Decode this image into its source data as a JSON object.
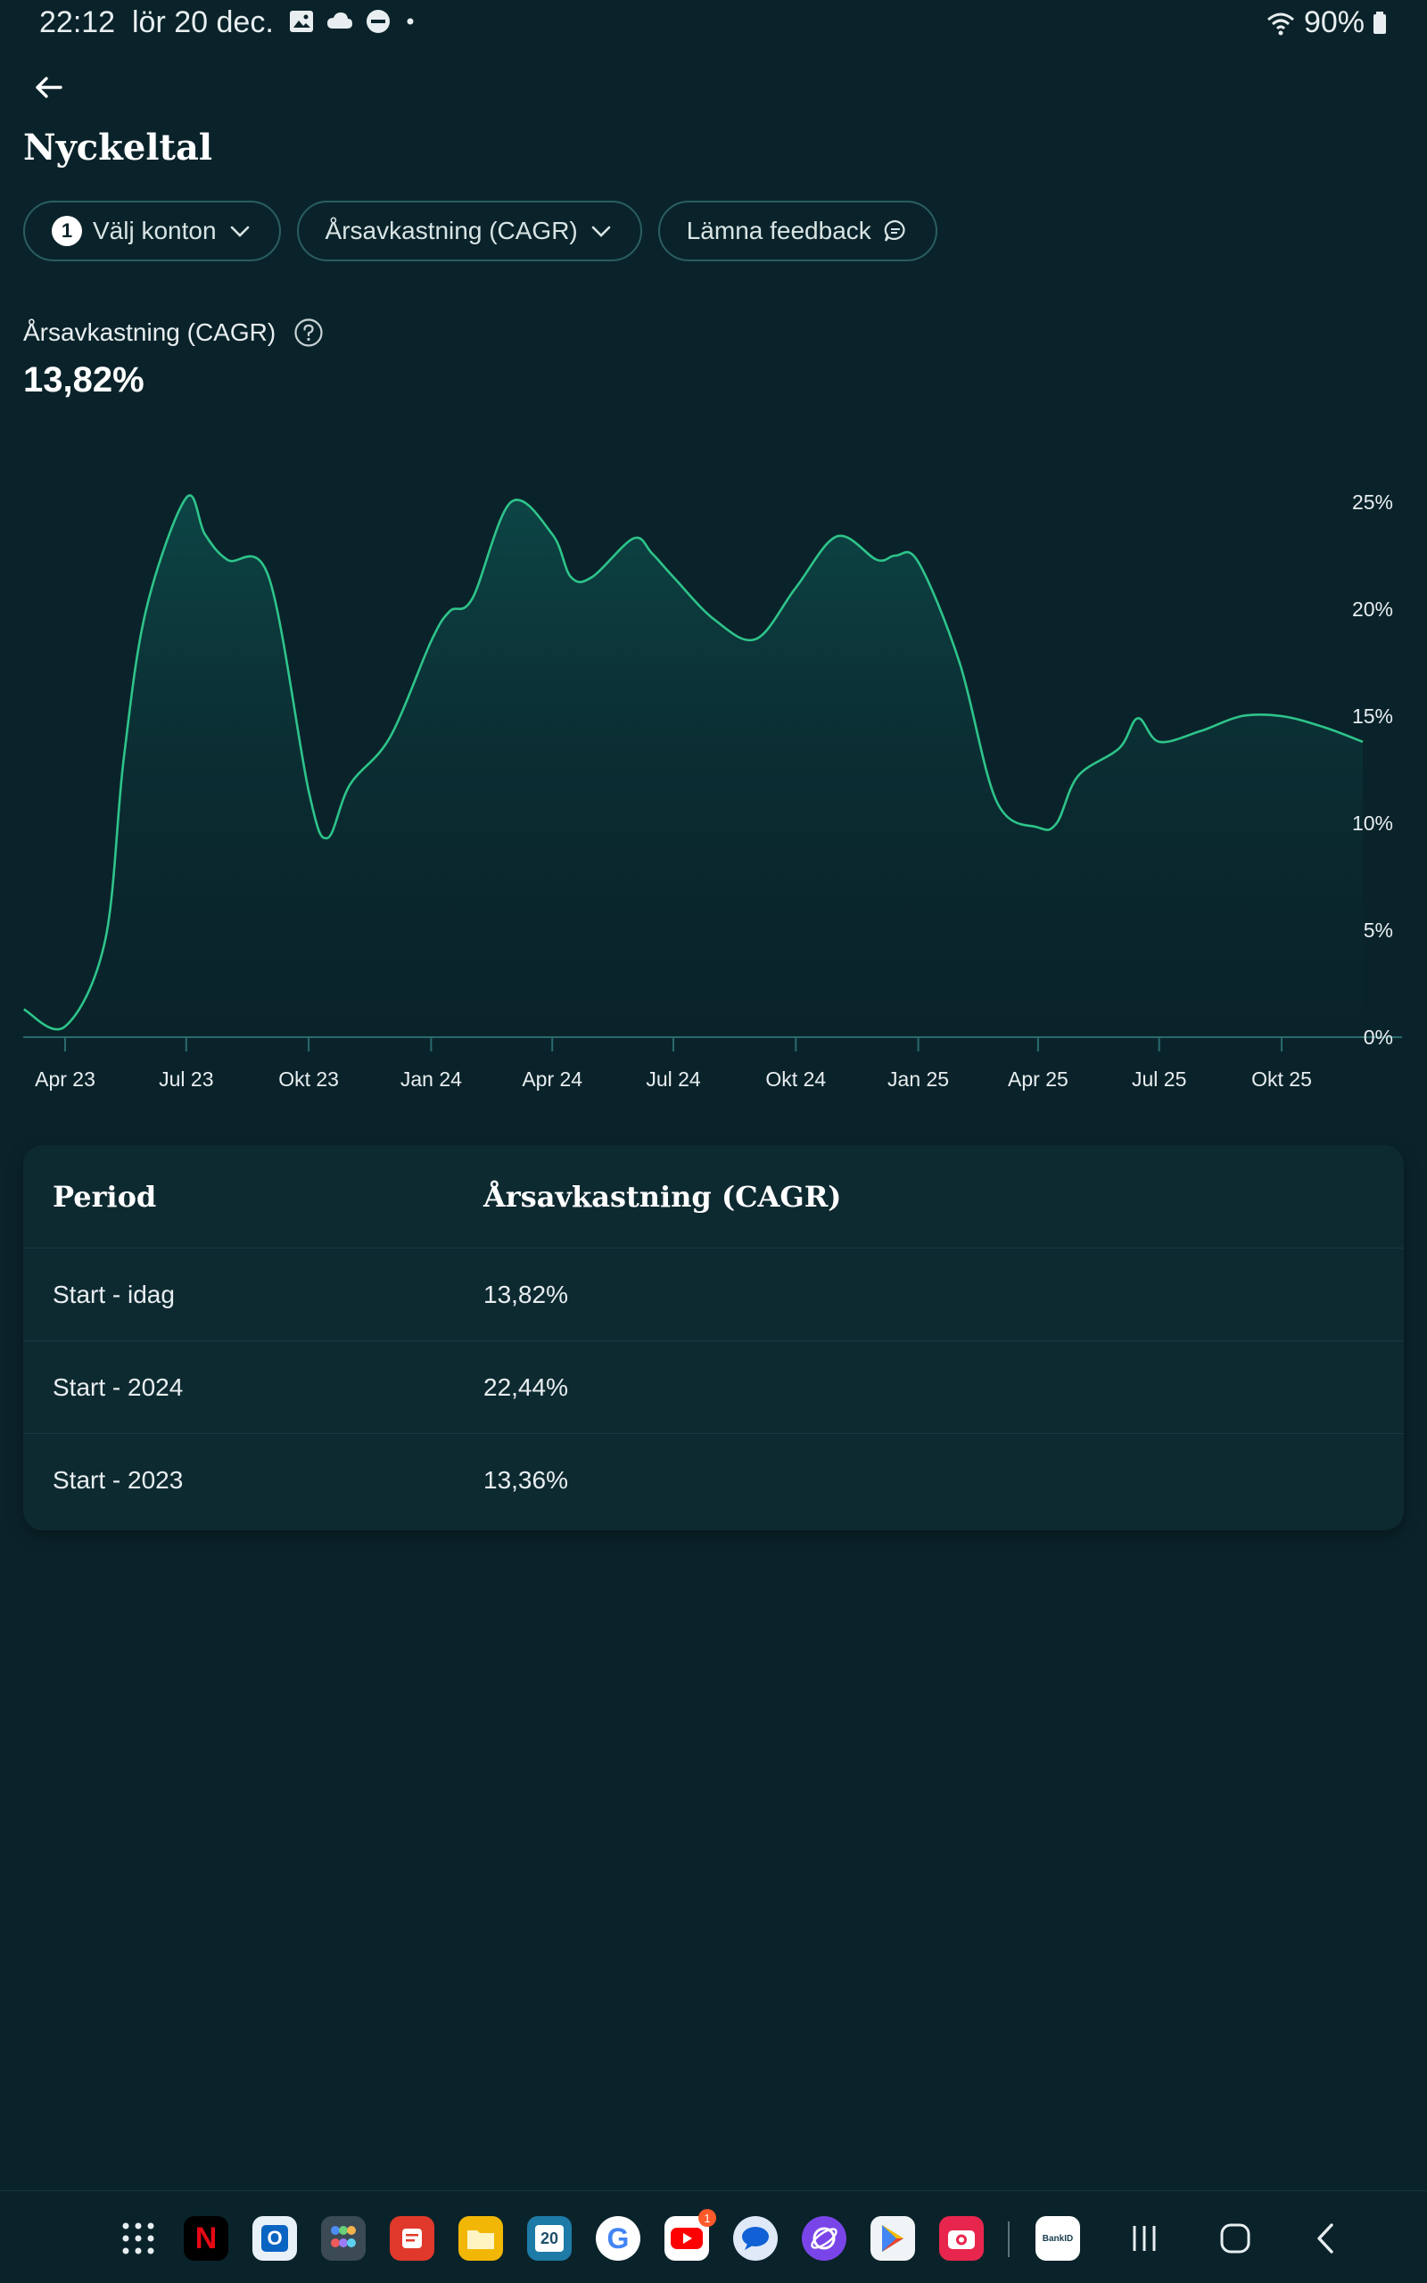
{
  "status_bar": {
    "time": "22:12",
    "date": "lör 20 dec.",
    "battery": "90%",
    "icons": [
      "image-icon",
      "cloud-icon",
      "dnd-icon",
      "dot-icon"
    ]
  },
  "header": {
    "title": "Nyckeltal"
  },
  "filters": {
    "accounts_badge": "1",
    "accounts_label": "Välj konton",
    "metric_label": "Årsavkastning (CAGR)",
    "feedback_label": "Lämna feedback"
  },
  "metric": {
    "label": "Årsavkastning (CAGR)",
    "value": "13,82%"
  },
  "chart_data": {
    "type": "area",
    "x_tick_labels": [
      "Apr 23",
      "Jul 23",
      "Okt 23",
      "Jan 24",
      "Apr 24",
      "Jul 24",
      "Okt 24",
      "Jan 25",
      "Apr 25",
      "Jul 25",
      "Okt 25"
    ],
    "y_tick_labels": [
      "0%",
      "5%",
      "10%",
      "15%",
      "20%",
      "25%"
    ],
    "ylim": [
      0,
      25
    ],
    "series": [
      {
        "x": [
          "2023-03",
          "2023-04",
          "2023-05",
          "2023-05-15",
          "2023-06",
          "2023-07",
          "2023-07-15",
          "2023-08",
          "2023-09",
          "2023-10",
          "2023-10-15",
          "2023-11",
          "2023-12",
          "2024-01",
          "2024-01-15",
          "2024-02",
          "2024-03",
          "2024-04",
          "2024-04-15",
          "2024-05",
          "2024-06",
          "2024-06-15",
          "2024-07",
          "2024-08",
          "2024-09",
          "2024-10",
          "2024-11",
          "2024-12",
          "2024-12-15",
          "2025-01",
          "2025-02",
          "2025-03",
          "2025-04",
          "2025-04-15",
          "2025-05",
          "2025-06",
          "2025-06-15",
          "2025-07",
          "2025-08",
          "2025-09",
          "2025-10",
          "2025-11",
          "2025-12"
        ],
        "y": [
          1.3,
          0.5,
          4.5,
          13,
          20,
          25.2,
          23.5,
          22.3,
          21.5,
          11.5,
          9.3,
          11.8,
          14,
          18.5,
          19.9,
          20.5,
          25.0,
          23.5,
          21.5,
          21.5,
          23.3,
          22.6,
          21.5,
          19.5,
          18.6,
          21.0,
          23.4,
          22.3,
          22.5,
          22.2,
          17.5,
          11,
          9.8,
          10.0,
          12.2,
          13.5,
          14.9,
          13.8,
          14.3,
          15.0,
          15.0,
          14.5,
          13.8
        ]
      }
    ],
    "colors": {
      "line": "#2ec48a",
      "axis": "#2a6a6e",
      "label": "#e8eef0"
    },
    "grid": false
  },
  "table": {
    "headers": [
      "Period",
      "Årsavkastning (CAGR)"
    ],
    "rows": [
      [
        "Start - idag",
        "13,82%"
      ],
      [
        "Start - 2024",
        "22,44%"
      ],
      [
        "Start - 2023",
        "13,36%"
      ]
    ]
  },
  "dock": {
    "apps": [
      {
        "name": "apps-grid-icon"
      },
      {
        "name": "netflix-icon",
        "label": "N"
      },
      {
        "name": "outlook-icon",
        "label": "O"
      },
      {
        "name": "folder-apps-icon"
      },
      {
        "name": "notes-icon"
      },
      {
        "name": "files-icon"
      },
      {
        "name": "calendar-icon",
        "label": "20"
      },
      {
        "name": "google-icon",
        "label": "G"
      },
      {
        "name": "youtube-icon",
        "badge": "1"
      },
      {
        "name": "messages-icon"
      },
      {
        "name": "browser-icon"
      },
      {
        "name": "play-store-icon"
      },
      {
        "name": "camera-icon"
      },
      {
        "name": "bankid-icon",
        "label": "BankID"
      }
    ],
    "nav": [
      "recents-button",
      "home-button",
      "back-nav-button"
    ]
  }
}
